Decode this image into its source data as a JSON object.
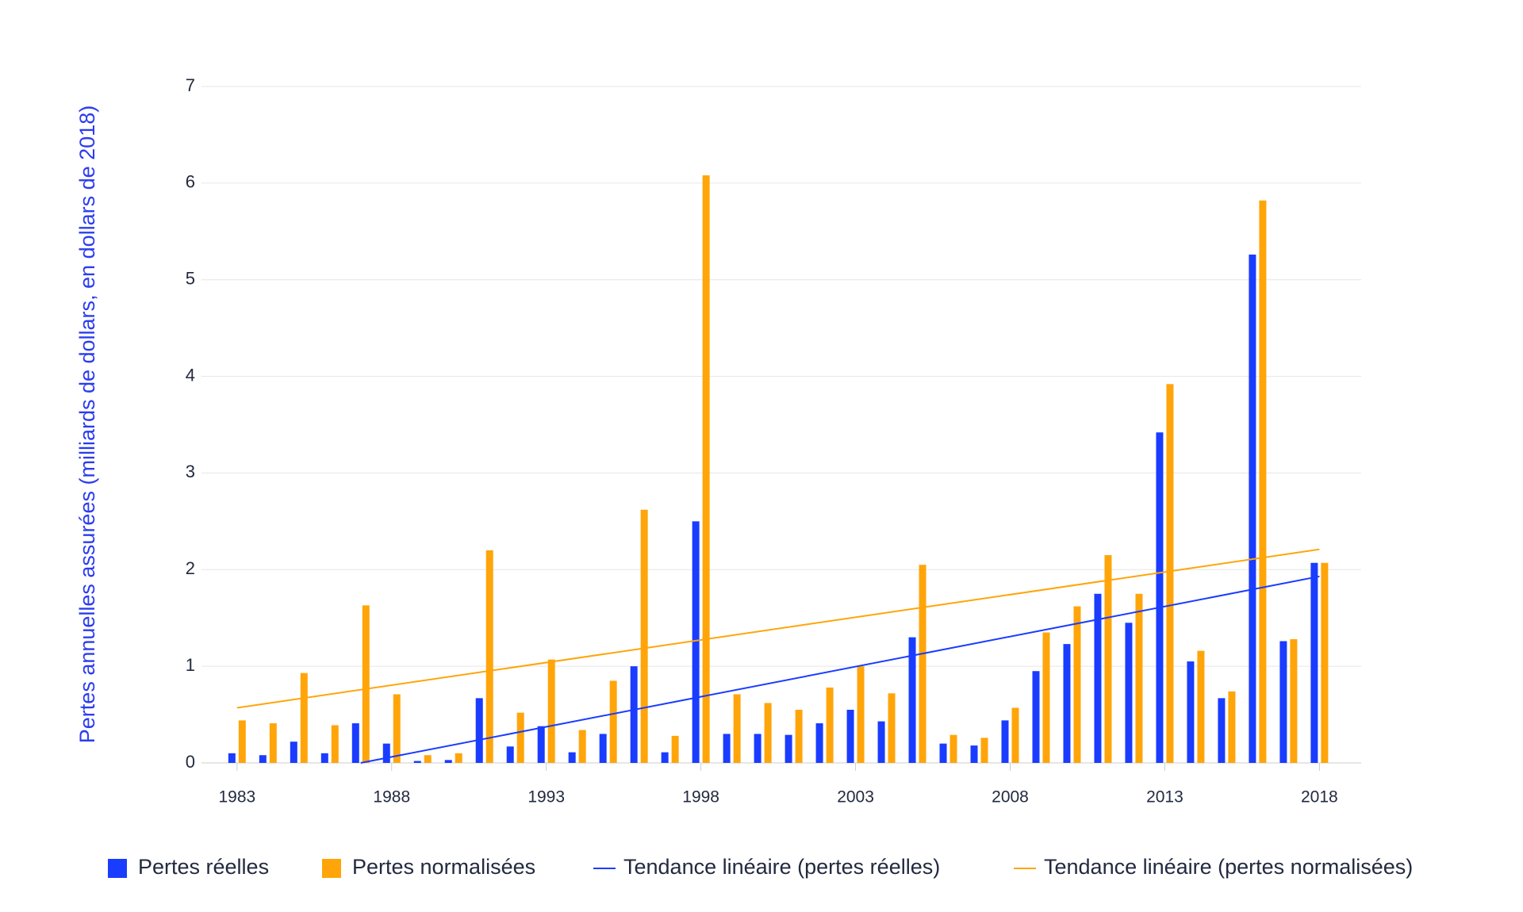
{
  "chart_data": {
    "type": "bar",
    "y_label": "Pertes annuelles assurées (milliards de dollars, en dollars de 2018)",
    "x": [
      1983,
      1984,
      1985,
      1986,
      1987,
      1988,
      1989,
      1990,
      1991,
      1992,
      1993,
      1994,
      1995,
      1996,
      1997,
      1998,
      1999,
      2000,
      2001,
      2002,
      2003,
      2004,
      2005,
      2006,
      2007,
      2008,
      2009,
      2010,
      2011,
      2012,
      2013,
      2014,
      2015,
      2016,
      2017,
      2018
    ],
    "series": [
      {
        "name": "Pertes réelles",
        "type": "bar",
        "color": "#1a3cff",
        "values": [
          0.1,
          0.08,
          0.22,
          0.1,
          0.41,
          0.2,
          0.02,
          0.03,
          0.67,
          0.17,
          0.38,
          0.11,
          0.3,
          1.0,
          0.11,
          2.5,
          0.3,
          0.3,
          0.29,
          0.41,
          0.55,
          0.43,
          1.3,
          0.2,
          0.18,
          0.44,
          0.95,
          1.23,
          1.75,
          1.45,
          3.42,
          1.05,
          0.67,
          5.26,
          1.26,
          2.07
        ]
      },
      {
        "name": "Pertes normalisées",
        "type": "bar",
        "color": "#ffa50a",
        "values": [
          0.44,
          0.41,
          0.93,
          0.39,
          1.63,
          0.71,
          0.08,
          0.1,
          2.2,
          0.52,
          1.07,
          0.34,
          0.85,
          2.62,
          0.28,
          6.08,
          0.71,
          0.62,
          0.55,
          0.78,
          1.0,
          0.72,
          2.05,
          0.29,
          0.26,
          0.57,
          1.35,
          1.62,
          2.15,
          1.75,
          3.92,
          1.16,
          0.74,
          5.82,
          1.28,
          2.07
        ]
      },
      {
        "name": "Tendance linéaire (pertes réelles)",
        "type": "line",
        "color": "#1a3cff",
        "x": [
          1987,
          2018
        ],
        "values": [
          0,
          1.93
        ]
      },
      {
        "name": "Tendance linéaire (pertes normalisées)",
        "type": "line",
        "color": "#ffa50a",
        "x": [
          1983,
          2018
        ],
        "values": [
          0.57,
          2.21
        ]
      }
    ],
    "xlim": [
      1981.85,
      2019.35
    ],
    "xticks": [
      1983,
      1988,
      1993,
      1998,
      2003,
      2008,
      2013,
      2018
    ],
    "ylim": [
      0,
      7
    ],
    "yticks": [
      0,
      1,
      2,
      3,
      4,
      5,
      6,
      7
    ],
    "grid": true
  }
}
